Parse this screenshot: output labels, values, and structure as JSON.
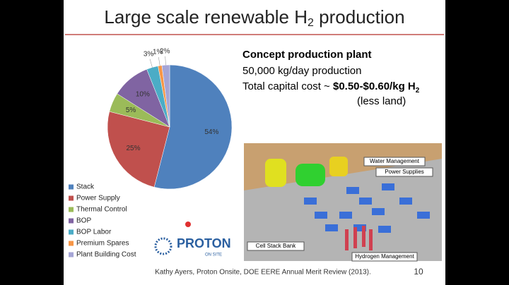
{
  "slide": {
    "title": [
      "Large scale renewable H",
      "2",
      " production"
    ],
    "heading": "Concept production plant",
    "line1": "50,000 kg/day production",
    "cost": [
      "Total capital cost ~ ",
      "$0.50-$0.60/kg H",
      "2"
    ],
    "line3": "(less land)",
    "image_labels": [
      "Water Management",
      "Power Supplies",
      "Cell Stack Bank",
      "Hydrogen Management"
    ],
    "logo": [
      "PROTON",
      "ON SITE"
    ],
    "footer": "Kathy Ayers, Proton Onsite, DOE EERE Annual Merit Review (2013).",
    "page_number": "10"
  },
  "chart_data": {
    "type": "pie",
    "categories": [
      "Stack",
      "Power Supply",
      "Thermal Control",
      "BOP",
      "BOP Labor",
      "Premium Spares",
      "Plant Building Cost"
    ],
    "values": [
      54,
      25,
      5,
      10,
      3,
      1,
      2
    ],
    "value_labels": [
      "54%",
      "25%",
      "5%",
      "10%",
      "3%",
      "1%",
      "2%"
    ],
    "colors": [
      "#4f81bd",
      "#c0504d",
      "#9bbb59",
      "#8064a2",
      "#4bacc6",
      "#f79646",
      "#a5a5d6"
    ],
    "legend": "bottom-left"
  }
}
